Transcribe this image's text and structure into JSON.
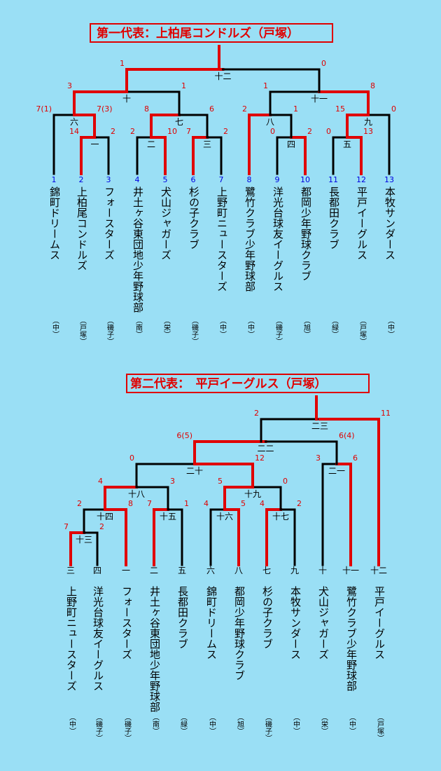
{
  "bracket1": {
    "title": "第一代表：上柏尾コンドルズ（戸塚）",
    "teams": [
      {
        "seed": "1",
        "name": "錦町ドリームス",
        "region": "（中）"
      },
      {
        "seed": "2",
        "name": "上柏尾コンドルズ",
        "region": "（戸塚）"
      },
      {
        "seed": "3",
        "name": "フォースターズ",
        "region": "（磯子）"
      },
      {
        "seed": "4",
        "name": "井土ヶ谷東団地少年野球部",
        "region": "（南）"
      },
      {
        "seed": "5",
        "name": "犬山ジャガーズ",
        "region": "（栄）"
      },
      {
        "seed": "6",
        "name": "杉の子クラブ",
        "region": "（磯子）"
      },
      {
        "seed": "7",
        "name": "上野町ニュースターズ",
        "region": "（中）"
      },
      {
        "seed": "8",
        "name": "鷺竹クラブ少年野球部",
        "region": "（中）"
      },
      {
        "seed": "9",
        "name": "洋光台球友イーグルス",
        "region": "（磯子）"
      },
      {
        "seed": "10",
        "name": "都岡少年野球クラブ",
        "region": "（旭）"
      },
      {
        "seed": "11",
        "name": "長都田クラブ",
        "region": "（緑）"
      },
      {
        "seed": "12",
        "name": "平戸イーグルス",
        "region": "（戸塚）"
      },
      {
        "seed": "13",
        "name": "本牧サンダース",
        "region": "（中）"
      }
    ],
    "games": [
      {
        "label": "一",
        "left_score": "14",
        "right_score": "2"
      },
      {
        "label": "二",
        "left_score": "2",
        "right_score": "10"
      },
      {
        "label": "三",
        "left_score": "7",
        "right_score": "2"
      },
      {
        "label": "四",
        "left_score": "0",
        "right_score": "2"
      },
      {
        "label": "五",
        "left_score": "0",
        "right_score": "13"
      },
      {
        "label": "六",
        "left_score": "7(1)",
        "right_score": "7(3)"
      },
      {
        "label": "七",
        "left_score": "8",
        "right_score": "6"
      },
      {
        "label": "八",
        "left_score": "2",
        "right_score": "1"
      },
      {
        "label": "九",
        "left_score": "15",
        "right_score": "0"
      },
      {
        "label": "十",
        "left_score": "3",
        "right_score": "1"
      },
      {
        "label": "十一",
        "left_score": "1",
        "right_score": "8"
      },
      {
        "label": "十二",
        "left_score": "1",
        "right_score": "0"
      }
    ]
  },
  "bracket2": {
    "title": "第二代表：　平戸イーグルス（戸塚）",
    "teams": [
      {
        "seed": "三",
        "name": "上野町ニュースターズ",
        "region": "（中）"
      },
      {
        "seed": "四",
        "name": "洋光台球友イーグルス",
        "region": "（磯子）"
      },
      {
        "seed": "一",
        "name": "フォースターズ",
        "region": "（磯子）"
      },
      {
        "seed": "二",
        "name": "井土ヶ谷東団地少年野球部",
        "region": "（南）"
      },
      {
        "seed": "五",
        "name": "長都田クラブ",
        "region": "（緑）"
      },
      {
        "seed": "六",
        "name": "錦町ドリームス",
        "region": "（中）"
      },
      {
        "seed": "八",
        "name": "都岡少年野球クラブ",
        "region": "（旭）"
      },
      {
        "seed": "七",
        "name": "杉の子クラブ",
        "region": "（磯子）"
      },
      {
        "seed": "九",
        "name": "本牧サンダース",
        "region": "（中）"
      },
      {
        "seed": "十",
        "name": "犬山ジャガーズ",
        "region": "（栄）"
      },
      {
        "seed": "十一",
        "name": "鷺竹クラブ少年野球部",
        "region": "（中）"
      },
      {
        "seed": "十二",
        "name": "平戸イーグルス",
        "region": "（戸塚）"
      }
    ],
    "games": [
      {
        "label": "十三",
        "left_score": "7",
        "right_score": "2"
      },
      {
        "label": "十四",
        "left_score": "2",
        "right_score": "8"
      },
      {
        "label": "十五",
        "left_score": "7",
        "right_score": "1"
      },
      {
        "label": "十六",
        "left_score": "4",
        "right_score": "5"
      },
      {
        "label": "十七",
        "left_score": "4",
        "right_score": "2"
      },
      {
        "label": "十八",
        "left_score": "4",
        "right_score": "3"
      },
      {
        "label": "十九",
        "left_score": "5",
        "right_score": "0"
      },
      {
        "label": "二十",
        "left_score": "0",
        "right_score": "12"
      },
      {
        "label": "二一",
        "left_score": "3",
        "right_score": "6"
      },
      {
        "label": "二二",
        "left_score": "6(5)",
        "right_score": "6(4)"
      },
      {
        "label": "二三",
        "left_score": "2",
        "right_score": "11"
      }
    ]
  },
  "colors": {
    "background": "#9adff5",
    "winner_line": "#e00000",
    "line": "#000000",
    "seed": "#0000e0"
  }
}
